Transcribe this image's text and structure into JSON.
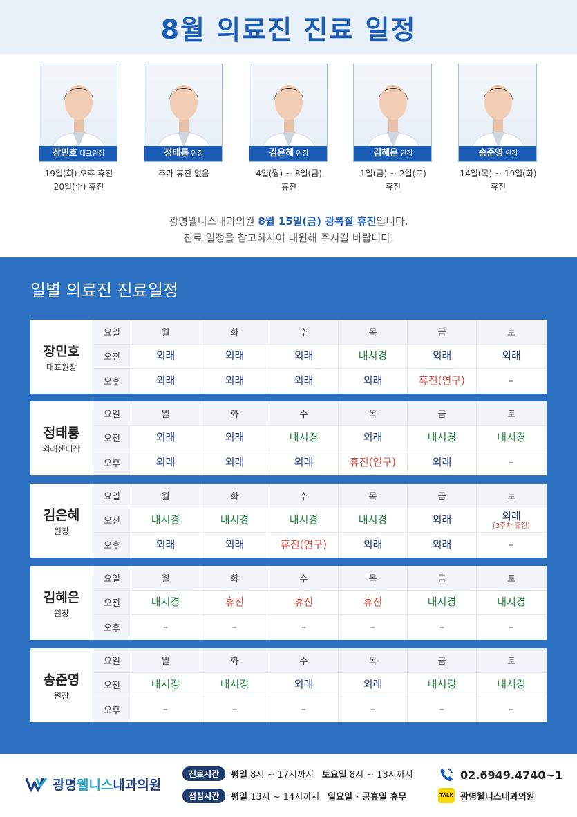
{
  "header": {
    "title": "8월 의료진 진료 일정"
  },
  "doctors": [
    {
      "name": "장민호",
      "role": "대표원장",
      "note1": "19일(화) 오후 휴진",
      "note2": "20일(수) 휴진"
    },
    {
      "name": "정태룡",
      "role": "원장",
      "note1": "추가 휴진 없음",
      "note2": ""
    },
    {
      "name": "김은혜",
      "role": "원장",
      "note1": "4일(월) ~ 8일(금)",
      "note2": "휴진"
    },
    {
      "name": "김혜은",
      "role": "원장",
      "note1": "1일(금) ~ 2일(토)",
      "note2": "휴진"
    },
    {
      "name": "송준영",
      "role": "원장",
      "note1": "14일(목) ~ 19일(화)",
      "note2": "휴진"
    }
  ],
  "notice": {
    "pre": "광명웰니스내과의원 ",
    "bold": "8월 15일(금) 광복절 휴진",
    "post": "입니다.",
    "line2": "진료 일정을 참고하시어 내원해 주시길 바랍니다."
  },
  "schedule": {
    "title": "일별 의료진 진료일정",
    "labels": {
      "day": "요일",
      "am": "오전",
      "pm": "오후"
    },
    "days": [
      "월",
      "화",
      "수",
      "목",
      "금",
      "토"
    ],
    "doctors": [
      {
        "name": "장민호",
        "role": "대표원장",
        "am": [
          {
            "t": "외래",
            "k": "out"
          },
          {
            "t": "외래",
            "k": "out"
          },
          {
            "t": "외래",
            "k": "out"
          },
          {
            "t": "내시경",
            "k": "endo"
          },
          {
            "t": "외래",
            "k": "out"
          },
          {
            "t": "외래",
            "k": "out"
          }
        ],
        "pm": [
          {
            "t": "외래",
            "k": "out"
          },
          {
            "t": "외래",
            "k": "out"
          },
          {
            "t": "외래",
            "k": "out"
          },
          {
            "t": "외래",
            "k": "out"
          },
          {
            "t": "휴진(연구)",
            "k": "off"
          },
          {
            "t": "–",
            "k": "dash"
          }
        ]
      },
      {
        "name": "정태룡",
        "role": "외래센터장",
        "am": [
          {
            "t": "외래",
            "k": "out"
          },
          {
            "t": "외래",
            "k": "out"
          },
          {
            "t": "내시경",
            "k": "endo"
          },
          {
            "t": "외래",
            "k": "out"
          },
          {
            "t": "내시경",
            "k": "endo"
          },
          {
            "t": "내시경",
            "k": "endo"
          }
        ],
        "pm": [
          {
            "t": "외래",
            "k": "out"
          },
          {
            "t": "외래",
            "k": "out"
          },
          {
            "t": "외래",
            "k": "out"
          },
          {
            "t": "휴진(연구)",
            "k": "off"
          },
          {
            "t": "외래",
            "k": "out"
          },
          {
            "t": "–",
            "k": "dash"
          }
        ]
      },
      {
        "name": "김은혜",
        "role": "원장",
        "am": [
          {
            "t": "내시경",
            "k": "endo"
          },
          {
            "t": "내시경",
            "k": "endo"
          },
          {
            "t": "내시경",
            "k": "endo"
          },
          {
            "t": "내시경",
            "k": "endo"
          },
          {
            "t": "외래",
            "k": "out"
          },
          {
            "t": "외래",
            "k": "out",
            "sub": "(3주차 휴진)"
          }
        ],
        "pm": [
          {
            "t": "외래",
            "k": "out"
          },
          {
            "t": "외래",
            "k": "out"
          },
          {
            "t": "휴진(연구)",
            "k": "off"
          },
          {
            "t": "외래",
            "k": "out"
          },
          {
            "t": "외래",
            "k": "out"
          },
          {
            "t": "–",
            "k": "dash"
          }
        ]
      },
      {
        "name": "김혜은",
        "role": "원장",
        "am": [
          {
            "t": "내시경",
            "k": "endo"
          },
          {
            "t": "휴진",
            "k": "off"
          },
          {
            "t": "휴진",
            "k": "off"
          },
          {
            "t": "휴진",
            "k": "off"
          },
          {
            "t": "내시경",
            "k": "endo"
          },
          {
            "t": "내시경",
            "k": "endo"
          }
        ],
        "pm": [
          {
            "t": "–",
            "k": "dash"
          },
          {
            "t": "–",
            "k": "dash"
          },
          {
            "t": "–",
            "k": "dash"
          },
          {
            "t": "–",
            "k": "dash"
          },
          {
            "t": "–",
            "k": "dash"
          },
          {
            "t": "–",
            "k": "dash"
          }
        ]
      },
      {
        "name": "송준영",
        "role": "원장",
        "am": [
          {
            "t": "내시경",
            "k": "endo"
          },
          {
            "t": "내시경",
            "k": "endo"
          },
          {
            "t": "외래",
            "k": "out"
          },
          {
            "t": "외래",
            "k": "out"
          },
          {
            "t": "내시경",
            "k": "endo"
          },
          {
            "t": "내시경",
            "k": "endo"
          }
        ],
        "pm": [
          {
            "t": "–",
            "k": "dash"
          },
          {
            "t": "–",
            "k": "dash"
          },
          {
            "t": "–",
            "k": "dash"
          },
          {
            "t": "–",
            "k": "dash"
          },
          {
            "t": "–",
            "k": "dash"
          },
          {
            "t": "–",
            "k": "dash"
          }
        ]
      }
    ]
  },
  "footer": {
    "logo_a": "광명",
    "logo_b": "웰니스",
    "logo_c": "내과의원",
    "hours_tag": "진료시간",
    "hours_weekday_label": "평일",
    "hours_weekday": "8시 ~ 17시까지",
    "hours_sat_label": "토요일",
    "hours_sat": "8시 ~ 13시까지",
    "lunch_tag": "점심시간",
    "lunch_label": "평일",
    "lunch": "13시 ~ 14시까지",
    "closed": "일요일 · 공휴일 휴무",
    "phone": "02.6949.4740~1",
    "kakao_badge": "TALK",
    "kakao": "광명웰니스내과의원"
  },
  "colors": {
    "primary": "#1a5bb5",
    "panel": "#2b6fc0",
    "outpatient": "#1f3c88",
    "endoscopy": "#1e8a3a",
    "closed": "#e04a3a"
  },
  "icons": [
    "doctor-photo",
    "phone-icon",
    "kakaotalk-icon",
    "clinic-logo-icon"
  ]
}
